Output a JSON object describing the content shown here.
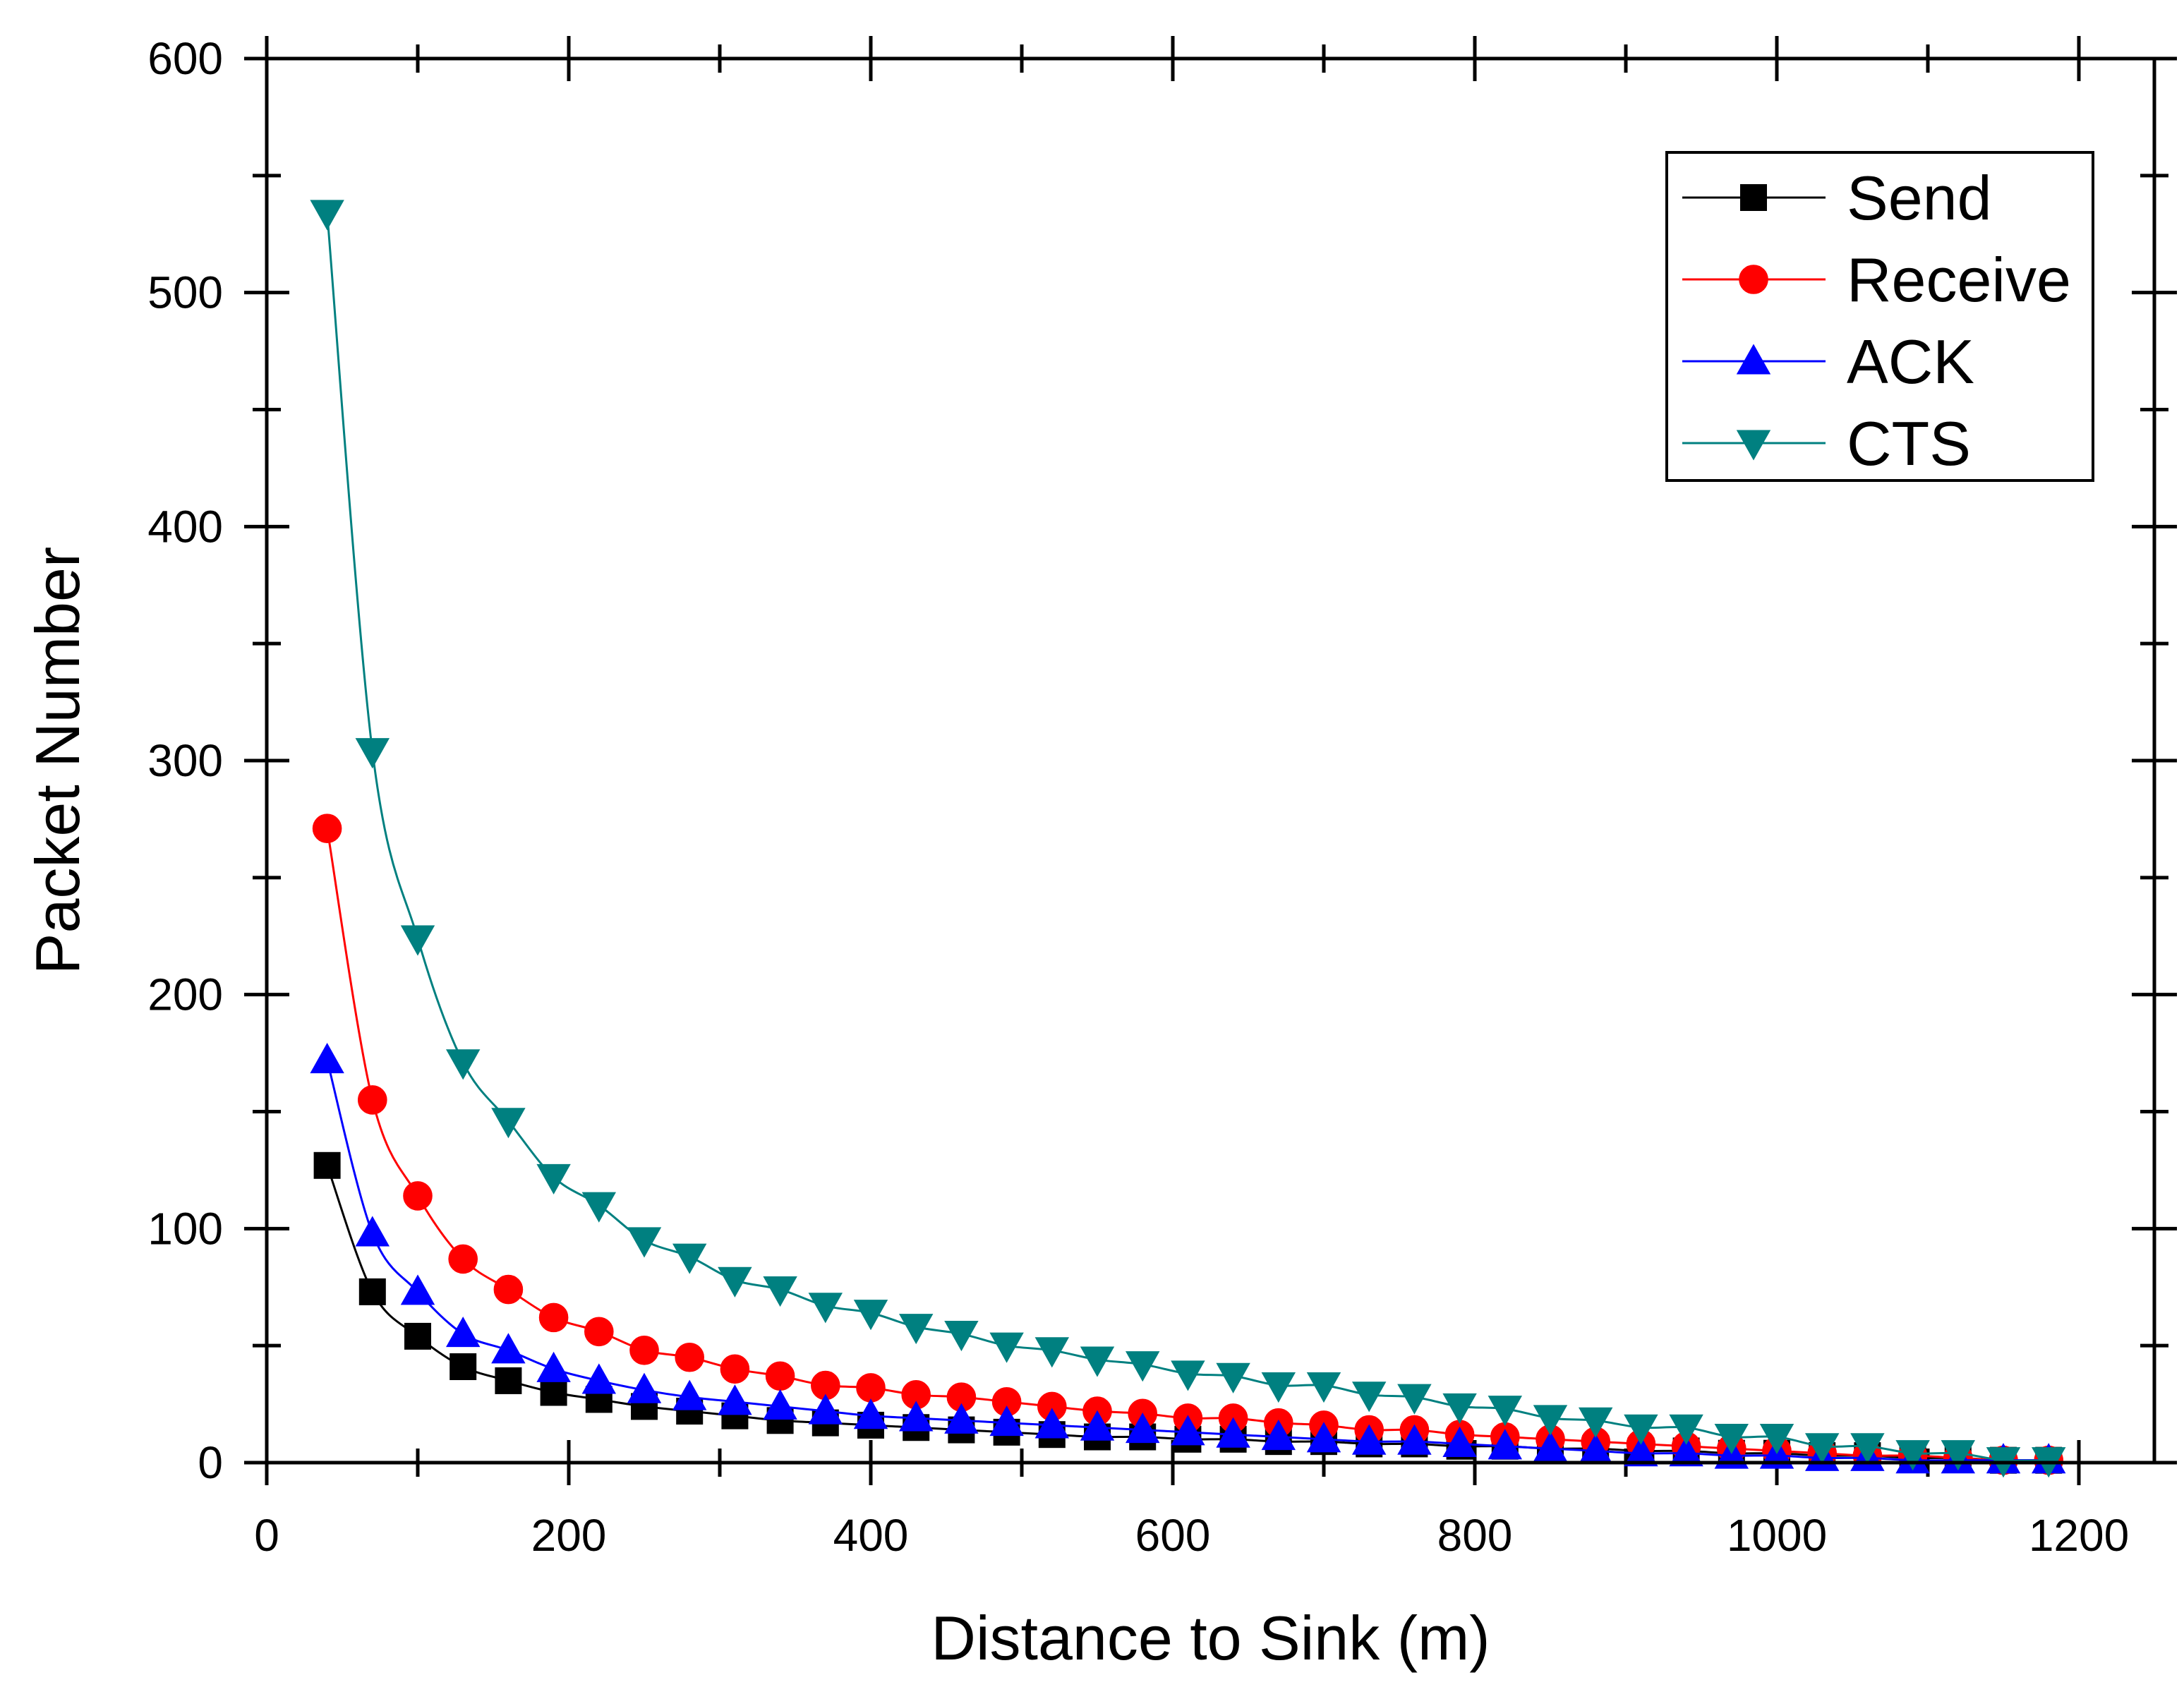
{
  "chart_data": {
    "type": "line",
    "title": "",
    "xlabel": "Distance to Sink (m)",
    "ylabel": "Packet Number",
    "xlim": [
      0,
      1250
    ],
    "ylim": [
      0,
      600
    ],
    "xticks": [
      0,
      200,
      400,
      600,
      800,
      1000,
      1200
    ],
    "yticks": [
      0,
      100,
      200,
      300,
      400,
      500,
      600
    ],
    "xtick_labels": [
      "0",
      "200",
      "400",
      "600",
      "800",
      "1000",
      "1200"
    ],
    "ytick_labels": [
      "0",
      "100",
      "200",
      "300",
      "400",
      "500",
      "600"
    ],
    "grid": false,
    "legend_position": "top-right",
    "x": [
      40,
      70,
      100,
      130,
      160,
      190,
      220,
      250,
      280,
      310,
      340,
      370,
      400,
      430,
      460,
      490,
      520,
      550,
      580,
      610,
      640,
      670,
      700,
      730,
      760,
      790,
      820,
      850,
      880,
      910,
      940,
      970,
      1000,
      1030,
      1060,
      1090,
      1120,
      1150,
      1180
    ],
    "series": [
      {
        "name": "Send",
        "color": "#000000",
        "marker": "square",
        "values": [
          127,
          73,
          54,
          41,
          35,
          30,
          27,
          24,
          22,
          20,
          18,
          17,
          16,
          15,
          14,
          13,
          12,
          11,
          11,
          10,
          10,
          9,
          9,
          8,
          8,
          7,
          7,
          6,
          6,
          5,
          5,
          4,
          4,
          3,
          3,
          2,
          2,
          1,
          1
        ]
      },
      {
        "name": "Receive",
        "color": "#ff0000",
        "marker": "circle",
        "values": [
          271,
          155,
          114,
          87,
          74,
          62,
          56,
          48,
          45,
          40,
          37,
          33,
          32,
          29,
          28,
          26,
          24,
          22,
          21,
          19,
          19,
          17,
          16,
          14,
          14,
          12,
          11,
          10,
          9,
          8,
          7,
          6,
          5,
          4,
          3,
          3,
          2,
          1,
          1
        ]
      },
      {
        "name": "ACK",
        "color": "#0000ff",
        "marker": "triangle-up",
        "values": [
          172,
          98,
          73,
          55,
          48,
          40,
          35,
          31,
          28,
          26,
          24,
          22,
          20,
          19,
          18,
          17,
          16,
          15,
          14,
          13,
          12,
          11,
          10,
          9,
          9,
          8,
          7,
          6,
          5,
          4,
          4,
          3,
          3,
          2,
          2,
          1,
          1,
          1,
          1
        ]
      },
      {
        "name": "CTS",
        "color": "#008080",
        "marker": "triangle-down",
        "values": [
          534,
          304,
          224,
          171,
          146,
          122,
          110,
          95,
          88,
          78,
          74,
          67,
          64,
          58,
          55,
          50,
          48,
          44,
          42,
          38,
          37,
          33,
          33,
          29,
          28,
          24,
          23,
          19,
          18,
          15,
          15,
          11,
          11,
          7,
          7,
          4,
          4,
          1,
          1
        ]
      }
    ]
  }
}
